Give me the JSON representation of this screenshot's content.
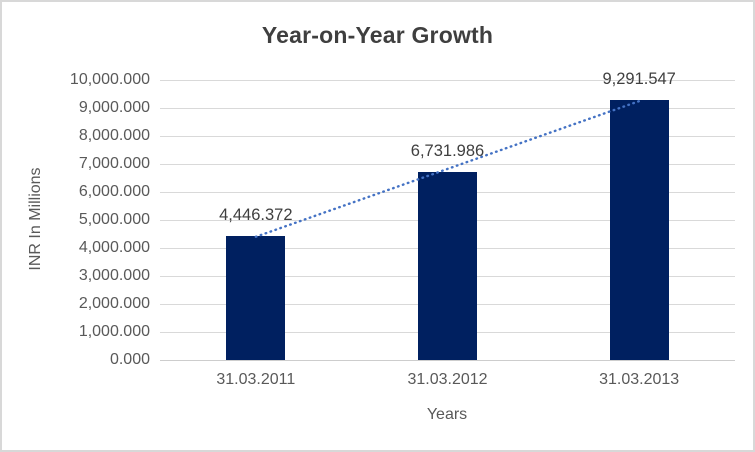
{
  "chart_data": {
    "type": "bar",
    "title": "Year-on-Year Growth",
    "xlabel": "Years",
    "ylabel": "INR In Millions",
    "categories": [
      "31.03.2011",
      "31.03.2012",
      "31.03.2013"
    ],
    "values": [
      4446.372,
      6731.986,
      9291.547
    ],
    "data_labels": [
      "4,446.372",
      "6,731.986",
      "9,291.547"
    ],
    "ylim": [
      0,
      10000
    ],
    "grid": true,
    "legend": "none",
    "trendline": {
      "type": "linear",
      "style": "dotted"
    },
    "yticks": [
      {
        "value": 0,
        "label": "0.000"
      },
      {
        "value": 1000,
        "label": "1,000.000"
      },
      {
        "value": 2000,
        "label": "2,000.000"
      },
      {
        "value": 3000,
        "label": "3,000.000"
      },
      {
        "value": 4000,
        "label": "4,000.000"
      },
      {
        "value": 5000,
        "label": "5,000.000"
      },
      {
        "value": 6000,
        "label": "6,000.000"
      },
      {
        "value": 7000,
        "label": "7,000.000"
      },
      {
        "value": 8000,
        "label": "8,000.000"
      },
      {
        "value": 9000,
        "label": "9,000.000"
      },
      {
        "value": 10000,
        "label": "10,000.000"
      }
    ],
    "colors": {
      "bar": "#002060",
      "trendline": "#4472C4",
      "gridline": "#D9D9D9",
      "axis_line": "#CDCDCD",
      "tick_text": "#595959",
      "label_text": "#3F3F3F",
      "title_text": "#3F3F3F",
      "border": "#D8D8D8",
      "background": "#FFFFFF"
    }
  }
}
